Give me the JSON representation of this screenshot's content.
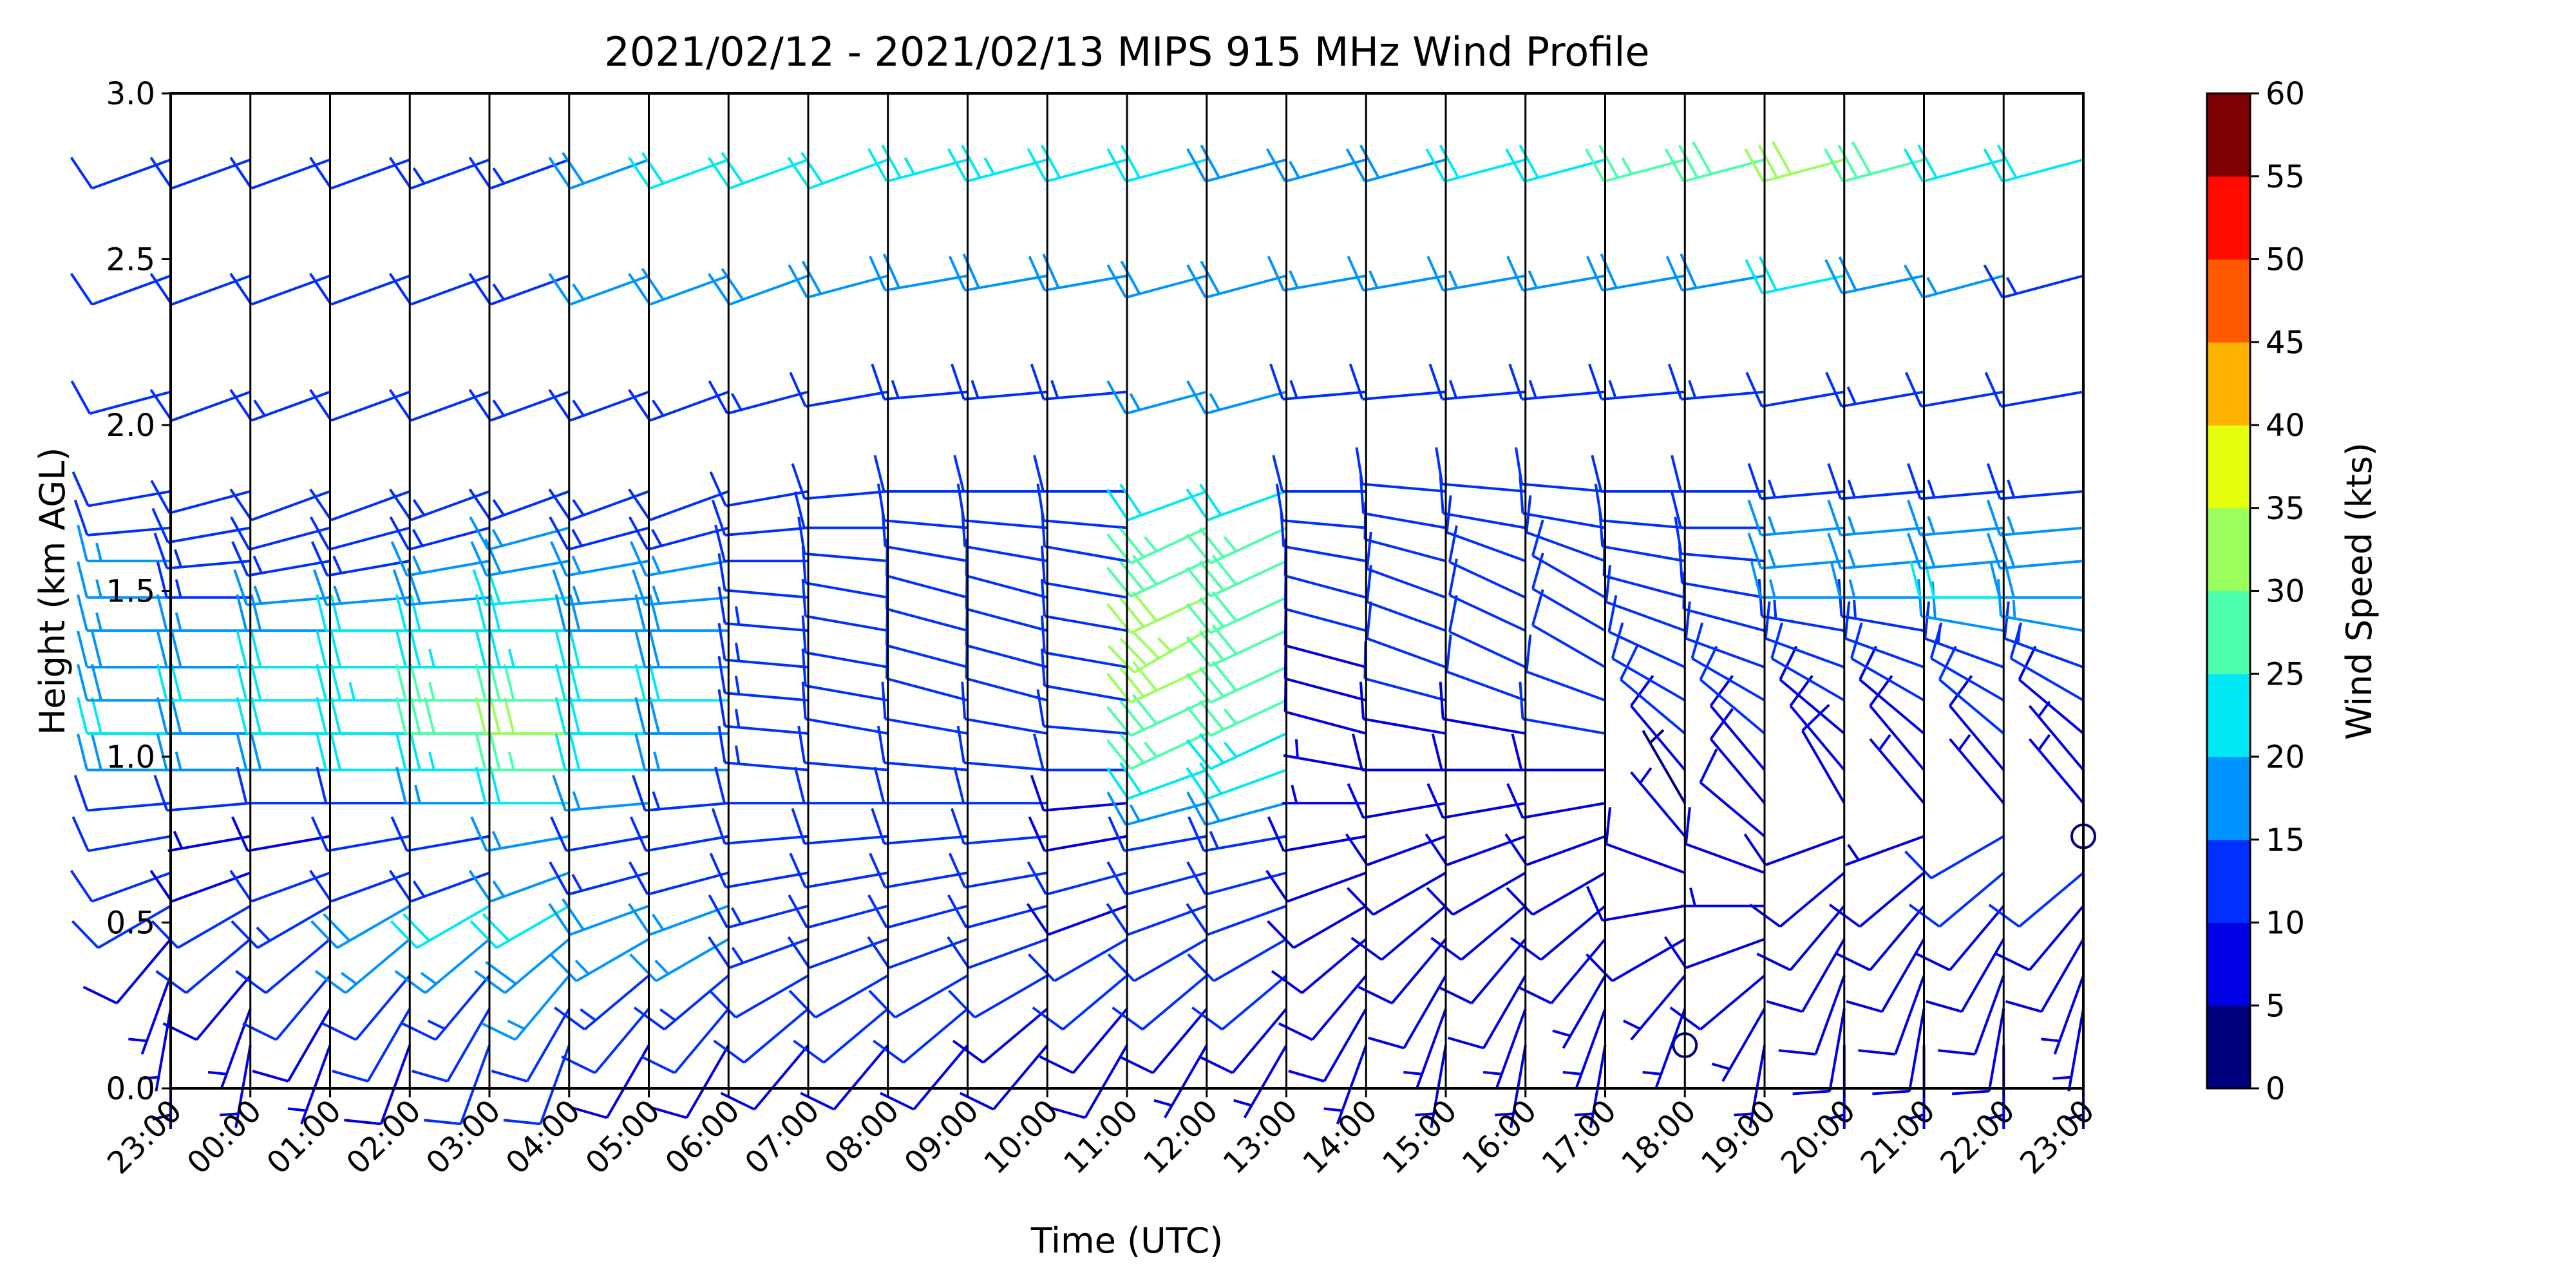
{
  "chart_data": {
    "type": "wind_barbs",
    "title": "2021/02/12 - 2021/02/13 MIPS 915 MHz Wind Profile",
    "xlabel": "Time (UTC)",
    "ylabel": "Height (km AGL)",
    "ylim": [
      0,
      3.0
    ],
    "y_ticks": [
      "0.0",
      "0.5",
      "1.0",
      "1.5",
      "2.0",
      "2.5",
      "3.0"
    ],
    "x_ticks": [
      "23:00",
      "00:00",
      "01:00",
      "02:00",
      "03:00",
      "04:00",
      "05:00",
      "06:00",
      "07:00",
      "08:00",
      "09:00",
      "10:00",
      "11:00",
      "12:00",
      "13:00",
      "14:00",
      "15:00",
      "16:00",
      "17:00",
      "18:00",
      "19:00",
      "20:00",
      "21:00",
      "22:00",
      "23:00"
    ],
    "heights_km": [
      0.13,
      0.24,
      0.34,
      0.45,
      0.55,
      0.65,
      0.76,
      0.86,
      0.96,
      1.07,
      1.17,
      1.27,
      1.38,
      1.48,
      1.59,
      1.69,
      1.8,
      2.1,
      2.45,
      2.8
    ],
    "wind_speed_kts": [
      [
        4,
        5,
        6,
        8,
        10,
        12,
        10,
        12,
        18,
        20,
        18,
        18,
        16,
        16,
        16,
        12,
        10,
        10,
        12,
        10
      ],
      [
        5,
        6,
        8,
        10,
        10,
        8,
        6,
        10,
        16,
        18,
        20,
        18,
        16,
        14,
        14,
        12,
        12,
        10,
        12,
        10
      ],
      [
        6,
        8,
        10,
        12,
        14,
        10,
        8,
        12,
        18,
        20,
        22,
        20,
        18,
        16,
        14,
        12,
        12,
        14,
        12,
        10
      ],
      [
        8,
        10,
        12,
        16,
        18,
        12,
        10,
        12,
        20,
        22,
        24,
        22,
        20,
        16,
        14,
        12,
        12,
        12,
        12,
        10
      ],
      [
        10,
        12,
        14,
        16,
        20,
        14,
        12,
        16,
        24,
        28,
        26,
        24,
        20,
        18,
        16,
        14,
        14,
        12,
        12,
        14
      ],
      [
        10,
        12,
        16,
        18,
        20,
        16,
        16,
        20,
        26,
        30,
        28,
        24,
        22,
        20,
        18,
        16,
        14,
        14,
        14,
        14
      ],
      [
        8,
        10,
        14,
        16,
        18,
        14,
        12,
        16,
        20,
        22,
        22,
        20,
        18,
        16,
        16,
        14,
        14,
        14,
        16,
        18
      ],
      [
        8,
        10,
        14,
        16,
        16,
        12,
        12,
        14,
        16,
        18,
        20,
        18,
        18,
        16,
        16,
        14,
        12,
        14,
        18,
        20
      ],
      [
        8,
        10,
        12,
        14,
        14,
        12,
        10,
        12,
        14,
        14,
        14,
        14,
        14,
        12,
        12,
        12,
        12,
        14,
        18,
        22
      ],
      [
        8,
        10,
        12,
        12,
        12,
        12,
        10,
        10,
        12,
        12,
        12,
        12,
        12,
        12,
        12,
        12,
        12,
        12,
        18,
        22
      ],
      [
        8,
        10,
        10,
        10,
        10,
        10,
        10,
        10,
        10,
        10,
        10,
        10,
        12,
        12,
        12,
        12,
        12,
        14,
        18,
        24
      ],
      [
        8,
        8,
        10,
        10,
        10,
        10,
        10,
        10,
        10,
        10,
        10,
        10,
        10,
        12,
        12,
        12,
        12,
        14,
        18,
        24
      ],
      [
        8,
        8,
        10,
        10,
        8,
        10,
        8,
        8,
        10,
        10,
        10,
        10,
        10,
        10,
        10,
        10,
        10,
        14,
        18,
        22
      ],
      [
        6,
        8,
        10,
        10,
        10,
        12,
        12,
        16,
        22,
        26,
        28,
        30,
        34,
        30,
        28,
        26,
        20,
        16,
        18,
        20
      ],
      [
        6,
        8,
        10,
        10,
        10,
        12,
        14,
        18,
        22,
        24,
        26,
        28,
        28,
        28,
        28,
        26,
        20,
        16,
        18,
        18
      ],
      [
        6,
        8,
        8,
        8,
        8,
        8,
        8,
        6,
        6,
        8,
        8,
        8,
        10,
        10,
        10,
        10,
        10,
        14,
        16,
        16
      ],
      [
        6,
        6,
        8,
        8,
        8,
        8,
        8,
        8,
        8,
        8,
        10,
        10,
        10,
        10,
        10,
        10,
        10,
        12,
        16,
        18
      ],
      [
        6,
        6,
        8,
        8,
        8,
        8,
        8,
        8,
        8,
        8,
        10,
        10,
        10,
        10,
        10,
        10,
        10,
        14,
        16,
        20
      ],
      [
        6,
        6,
        6,
        8,
        8,
        8,
        8,
        8,
        8,
        10,
        10,
        10,
        10,
        10,
        10,
        10,
        10,
        14,
        16,
        22
      ],
      [
        0,
        6,
        6,
        8,
        8,
        8,
        6,
        4,
        8,
        10,
        10,
        12,
        12,
        12,
        12,
        10,
        10,
        14,
        18,
        26
      ],
      [
        6,
        6,
        8,
        8,
        6,
        8,
        8,
        8,
        8,
        10,
        10,
        12,
        12,
        12,
        12,
        12,
        12,
        14,
        18,
        28
      ],
      [
        6,
        8,
        8,
        8,
        8,
        8,
        8,
        8,
        8,
        8,
        10,
        12,
        14,
        16,
        16,
        16,
        14,
        12,
        20,
        30
      ],
      [
        6,
        8,
        8,
        8,
        8,
        8,
        6,
        6,
        8,
        8,
        10,
        12,
        14,
        16,
        16,
        16,
        14,
        14,
        18,
        28
      ],
      [
        6,
        8,
        8,
        8,
        8,
        10,
        10,
        6,
        8,
        10,
        12,
        14,
        18,
        20,
        18,
        16,
        14,
        12,
        16,
        22
      ],
      [
        4,
        6,
        6,
        8,
        8,
        10,
        0,
        6,
        6,
        8,
        12,
        14,
        16,
        18,
        18,
        16,
        14,
        12,
        14,
        20
      ]
    ],
    "wind_direction_deg": [
      [
        180,
        190,
        200,
        220,
        240,
        250,
        260,
        265,
        270,
        270,
        270,
        270,
        270,
        270,
        270,
        265,
        260,
        255,
        250,
        250
      ],
      [
        190,
        200,
        220,
        230,
        240,
        250,
        260,
        265,
        270,
        270,
        270,
        270,
        270,
        270,
        265,
        260,
        255,
        250,
        250,
        250
      ],
      [
        200,
        210,
        220,
        230,
        240,
        250,
        260,
        270,
        270,
        270,
        270,
        270,
        270,
        265,
        260,
        255,
        250,
        250,
        250,
        250
      ],
      [
        200,
        210,
        220,
        230,
        240,
        250,
        260,
        270,
        270,
        270,
        270,
        270,
        270,
        265,
        260,
        255,
        250,
        250,
        250,
        250
      ],
      [
        200,
        210,
        220,
        230,
        240,
        250,
        260,
        270,
        270,
        270,
        270,
        270,
        270,
        265,
        260,
        255,
        250,
        250,
        250,
        250
      ],
      [
        200,
        210,
        220,
        230,
        240,
        250,
        260,
        270,
        270,
        270,
        270,
        270,
        270,
        265,
        260,
        255,
        250,
        250,
        250,
        250
      ],
      [
        210,
        220,
        230,
        240,
        250,
        255,
        260,
        265,
        270,
        270,
        270,
        270,
        270,
        265,
        260,
        255,
        250,
        250,
        250,
        250
      ],
      [
        210,
        220,
        230,
        240,
        250,
        255,
        260,
        265,
        270,
        270,
        270,
        270,
        270,
        265,
        260,
        255,
        250,
        250,
        250,
        250
      ],
      [
        220,
        230,
        240,
        250,
        255,
        260,
        265,
        270,
        275,
        275,
        275,
        275,
        275,
        275,
        270,
        265,
        260,
        255,
        250,
        250
      ],
      [
        220,
        230,
        240,
        250,
        255,
        260,
        265,
        270,
        275,
        280,
        280,
        280,
        280,
        280,
        275,
        270,
        265,
        260,
        255,
        250
      ],
      [
        220,
        230,
        240,
        250,
        255,
        260,
        265,
        270,
        275,
        280,
        285,
        285,
        285,
        285,
        280,
        275,
        270,
        265,
        260,
        255
      ],
      [
        220,
        230,
        240,
        250,
        255,
        260,
        265,
        270,
        275,
        280,
        285,
        285,
        285,
        285,
        280,
        275,
        270,
        265,
        260,
        255
      ],
      [
        210,
        220,
        230,
        240,
        250,
        255,
        260,
        265,
        270,
        275,
        280,
        280,
        280,
        280,
        280,
        275,
        270,
        265,
        260,
        255
      ],
      [
        210,
        220,
        230,
        240,
        250,
        255,
        260,
        255,
        250,
        245,
        245,
        245,
        240,
        245,
        245,
        245,
        250,
        255,
        255,
        255
      ],
      [
        210,
        220,
        230,
        240,
        250,
        255,
        260,
        255,
        250,
        245,
        245,
        245,
        245,
        245,
        245,
        245,
        250,
        255,
        255,
        255
      ],
      [
        200,
        210,
        220,
        230,
        240,
        250,
        260,
        270,
        280,
        285,
        285,
        285,
        285,
        285,
        280,
        275,
        270,
        265,
        260,
        255
      ],
      [
        190,
        200,
        210,
        220,
        230,
        240,
        250,
        260,
        270,
        280,
        285,
        290,
        290,
        290,
        285,
        280,
        275,
        265,
        260,
        255
      ],
      [
        190,
        200,
        210,
        220,
        230,
        240,
        250,
        260,
        270,
        280,
        290,
        295,
        295,
        295,
        290,
        280,
        275,
        265,
        260,
        255
      ],
      [
        190,
        200,
        210,
        220,
        230,
        240,
        250,
        260,
        270,
        280,
        290,
        300,
        300,
        300,
        290,
        280,
        275,
        265,
        260,
        255
      ],
      [
        0,
        200,
        220,
        240,
        260,
        290,
        320,
        330,
        320,
        310,
        300,
        295,
        290,
        285,
        280,
        275,
        270,
        265,
        260,
        255
      ],
      [
        190,
        210,
        230,
        250,
        270,
        290,
        310,
        320,
        320,
        310,
        300,
        290,
        285,
        280,
        275,
        270,
        270,
        265,
        260,
        255
      ],
      [
        180,
        190,
        200,
        210,
        220,
        230,
        250,
        330,
        320,
        310,
        300,
        290,
        280,
        270,
        265,
        265,
        265,
        260,
        258,
        255
      ],
      [
        180,
        190,
        200,
        210,
        220,
        230,
        250,
        320,
        320,
        310,
        300,
        290,
        280,
        270,
        265,
        265,
        265,
        260,
        258,
        255
      ],
      [
        180,
        190,
        200,
        210,
        220,
        230,
        240,
        320,
        320,
        310,
        300,
        290,
        280,
        270,
        265,
        265,
        265,
        260,
        255,
        255
      ],
      [
        180,
        190,
        200,
        210,
        220,
        230,
        0,
        320,
        320,
        310,
        300,
        290,
        280,
        270,
        265,
        265,
        265,
        260,
        255,
        255
      ]
    ],
    "colorbar": {
      "label": "Wind Speed (kts)",
      "min": 0,
      "max": 60,
      "step": 5,
      "ticks": [
        "0",
        "5",
        "10",
        "15",
        "20",
        "25",
        "30",
        "35",
        "40",
        "45",
        "50",
        "55",
        "60"
      ],
      "colors": [
        "#00007f",
        "#0000e5",
        "#0030ff",
        "#0094ff",
        "#00e8f5",
        "#4dffaa",
        "#9aff5c",
        "#e6ff0e",
        "#ffb200",
        "#ff5a00",
        "#ff0b00",
        "#7f0000"
      ]
    },
    "grid": false,
    "legend": "none"
  }
}
